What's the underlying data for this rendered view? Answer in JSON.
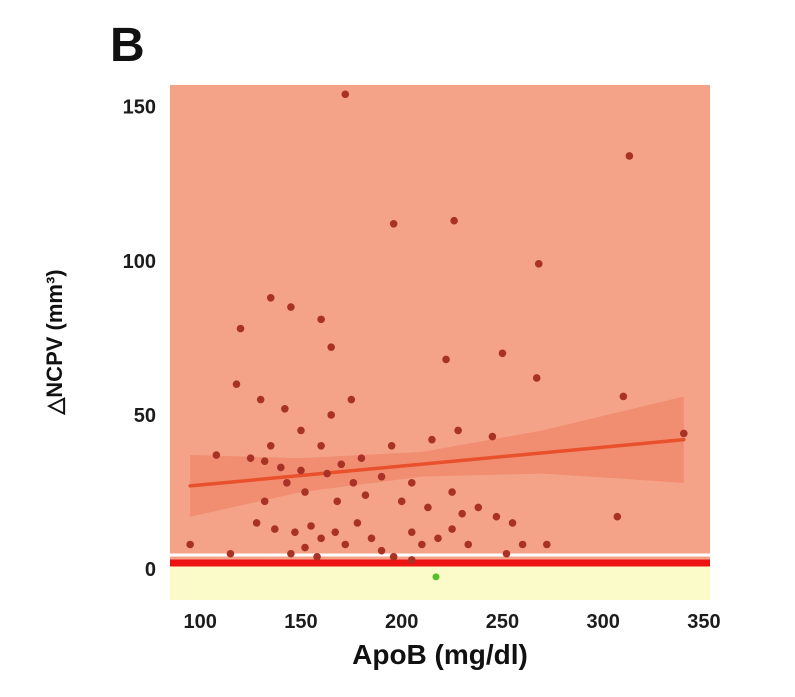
{
  "figure": {
    "panel_label": "B"
  },
  "chart_data": {
    "type": "scatter",
    "title": "",
    "xlabel": "ApoB (mg/dl)",
    "ylabel": "△NCPV (mm³)",
    "xlim": [
      85,
      353
    ],
    "ylim": [
      -10,
      157
    ],
    "x_ticks": [
      100,
      150,
      200,
      250,
      300,
      350
    ],
    "y_ticks": [
      0,
      50,
      100,
      150
    ],
    "grid": false,
    "legend_position": "none",
    "regions": [
      {
        "name": "above-threshold-region",
        "from": 2,
        "to": 157,
        "color": "#f5a388"
      },
      {
        "name": "below-threshold-region",
        "from": -10,
        "to": 2,
        "color": "#fafbc9"
      }
    ],
    "separator_line": {
      "y": 4.6,
      "color": "#ffffff",
      "width": 3
    },
    "threshold_line": {
      "y": 2,
      "color": "#ee1313",
      "width": 7
    },
    "regression_line": {
      "x": [
        95,
        340
      ],
      "y": [
        27,
        42
      ],
      "color": "#e8512b",
      "width": 3.5
    },
    "confidence_band": {
      "color": "rgba(230,75,45,0.25)",
      "x": [
        95,
        150,
        210,
        270,
        340
      ],
      "upper": [
        37,
        36,
        38,
        45,
        56
      ],
      "lower": [
        17,
        25,
        30,
        31,
        28
      ]
    },
    "series": [
      {
        "name": "apob-ncpv",
        "color": "#a93226",
        "marker_radius": 3.8,
        "points": [
          [
            172,
            154
          ],
          [
            313,
            134
          ],
          [
            196,
            112
          ],
          [
            226,
            113
          ],
          [
            268,
            99
          ],
          [
            135,
            88
          ],
          [
            145,
            85
          ],
          [
            160,
            81
          ],
          [
            120,
            78
          ],
          [
            165,
            72
          ],
          [
            250,
            70
          ],
          [
            222,
            68
          ],
          [
            267,
            62
          ],
          [
            118,
            60
          ],
          [
            310,
            56
          ],
          [
            130,
            55
          ],
          [
            175,
            55
          ],
          [
            142,
            52
          ],
          [
            165,
            50
          ],
          [
            340,
            44
          ],
          [
            150,
            45
          ],
          [
            228,
            45
          ],
          [
            245,
            43
          ],
          [
            135,
            40
          ],
          [
            160,
            40
          ],
          [
            195,
            40
          ],
          [
            215,
            42
          ],
          [
            108,
            37
          ],
          [
            125,
            36
          ],
          [
            140,
            33
          ],
          [
            150,
            32
          ],
          [
            163,
            31
          ],
          [
            170,
            34
          ],
          [
            180,
            36
          ],
          [
            190,
            30
          ],
          [
            205,
            28
          ],
          [
            225,
            25
          ],
          [
            152,
            25
          ],
          [
            143,
            28
          ],
          [
            132,
            35
          ],
          [
            200,
            22
          ],
          [
            213,
            20
          ],
          [
            230,
            18
          ],
          [
            238,
            20
          ],
          [
            247,
            17
          ],
          [
            255,
            15
          ],
          [
            128,
            15
          ],
          [
            137,
            13
          ],
          [
            147,
            12
          ],
          [
            155,
            14
          ],
          [
            160,
            10
          ],
          [
            167,
            12
          ],
          [
            172,
            8
          ],
          [
            178,
            15
          ],
          [
            185,
            10
          ],
          [
            190,
            6
          ],
          [
            196,
            4
          ],
          [
            205,
            12
          ],
          [
            210,
            8
          ],
          [
            218,
            10
          ],
          [
            225,
            13
          ],
          [
            233,
            8
          ],
          [
            95,
            8
          ],
          [
            115,
            5
          ],
          [
            145,
            5
          ],
          [
            152,
            7
          ],
          [
            158,
            4
          ],
          [
            252,
            5
          ],
          [
            260,
            8
          ],
          [
            272,
            8
          ],
          [
            205,
            3
          ],
          [
            307,
            17
          ],
          [
            132,
            22
          ],
          [
            168,
            22
          ],
          [
            176,
            28
          ],
          [
            182,
            24
          ]
        ]
      },
      {
        "name": "highlight",
        "color": "#56c02b",
        "marker_radius": 3.5,
        "points": [
          [
            217,
            -2.5
          ]
        ]
      }
    ]
  }
}
